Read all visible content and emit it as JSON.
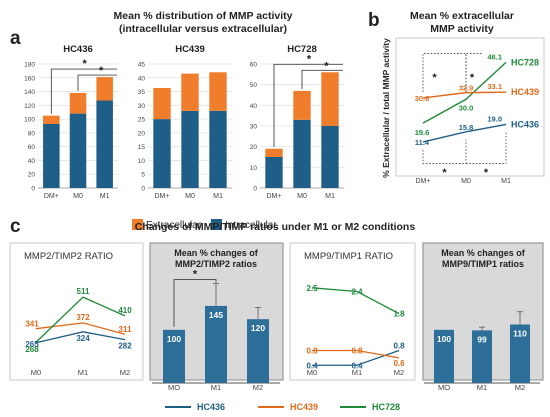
{
  "colors": {
    "intracellular": "#1f5f87",
    "extracellular": "#ef7d2c",
    "hc436": "#1f5f87",
    "hc439": "#e06a1a",
    "hc728": "#1f8a3a",
    "bar_c": "#2e6f9a",
    "panel_bg": "#d9d9d9",
    "text_dark": "#222222"
  },
  "panel_a": {
    "letter": "a",
    "title_line1": "Mean % distribution of MMP activity",
    "title_line2": "(intracellular versus extracellular)",
    "legend": {
      "extracellular": "Extracellular",
      "intracellular": "Intracellular"
    },
    "significance": "*"
  },
  "panel_b": {
    "letter": "b",
    "title_line1": "Mean % extracellular",
    "title_line2": "MMP activity",
    "ylabel": "% Extracellular / total MMP activity",
    "significance": "*"
  },
  "panel_c": {
    "letter": "c",
    "title": "Changes of MMP/TIMP ratios under M1 or M2 conditions",
    "sub1_title": "MMP2/TIMP2 RATIO",
    "sub2_title_line1": "Mean % changes of",
    "sub2_title_line2": "MMP2/TIMP2 ratios",
    "sub3_title": "MMP9/TIMP1 RATIO",
    "sub4_title_line1": "Mean % changes of",
    "sub4_title_line2": "MMP9/TIMP1 ratios",
    "significance": "*"
  },
  "legend_c": [
    {
      "name": "HC436",
      "color": "#1f5f87"
    },
    {
      "name": "HC439",
      "color": "#e06a1a"
    },
    {
      "name": "HC728",
      "color": "#1f8a3a"
    }
  ],
  "chart_data": [
    {
      "id": "a_hc436",
      "type": "bar",
      "stacked": true,
      "title": "HC436",
      "categories": [
        "DM+",
        "M0",
        "M1"
      ],
      "series": [
        {
          "name": "Intracellular",
          "values": [
            93,
            108,
            127
          ]
        },
        {
          "name": "Extracellular",
          "values": [
            12,
            30,
            34
          ]
        }
      ],
      "ylim": [
        0,
        180
      ],
      "yticks": [
        0,
        20,
        40,
        60,
        80,
        100,
        120,
        140,
        160,
        180
      ],
      "annotations": [
        "*",
        "*"
      ]
    },
    {
      "id": "a_hc439",
      "type": "bar",
      "stacked": true,
      "title": "HC439",
      "categories": [
        "DM+",
        "M0",
        "M1"
      ],
      "series": [
        {
          "name": "Intracellular",
          "values": [
            25,
            28,
            28
          ]
        },
        {
          "name": "Extracellular",
          "values": [
            11.3,
            13.5,
            14
          ]
        }
      ],
      "ylim": [
        0,
        45
      ],
      "yticks": [
        0,
        5,
        10,
        15,
        20,
        25,
        30,
        35,
        40,
        45
      ]
    },
    {
      "id": "a_hc728",
      "type": "bar",
      "stacked": true,
      "title": "HC728",
      "categories": [
        "DM+",
        "M0",
        "M1"
      ],
      "series": [
        {
          "name": "Intracellular",
          "values": [
            15,
            33,
            30
          ]
        },
        {
          "name": "Extracellular",
          "values": [
            4,
            14,
            26
          ]
        }
      ],
      "ylim": [
        0,
        60
      ],
      "yticks": [
        0,
        10,
        20,
        30,
        40,
        50,
        60
      ],
      "annotations": [
        "*",
        "*"
      ]
    },
    {
      "id": "b_extracellular",
      "type": "line",
      "x": [
        "DM+",
        "M0",
        "M1"
      ],
      "series": [
        {
          "name": "HC728",
          "values": [
            19.6,
            30.0,
            46.1
          ]
        },
        {
          "name": "HC439",
          "values": [
            30.6,
            32.9,
            33.1
          ]
        },
        {
          "name": "HC436",
          "values": [
            11.4,
            15.8,
            19.0
          ]
        }
      ],
      "ylabel": "% Extracellular / total MMP activity",
      "ylim": [
        0,
        55
      ]
    },
    {
      "id": "c_mmp2_timp2",
      "type": "line",
      "title": "MMP2/TIMP2 RATIO",
      "x": [
        "M0",
        "M1",
        "M2"
      ],
      "series": [
        {
          "name": "HC436",
          "values": [
            265,
            324,
            282
          ]
        },
        {
          "name": "HC439",
          "values": [
            341,
            372,
            311
          ]
        },
        {
          "name": "HC728",
          "values": [
            268,
            511,
            410
          ]
        }
      ],
      "ylim": [
        0,
        700
      ]
    },
    {
      "id": "c_mmp2_timp2_mean",
      "type": "bar",
      "title": "Mean % changes of MMP2/TIMP2 ratios",
      "categories": [
        "MO",
        "M1",
        "M2"
      ],
      "values": [
        100,
        145,
        120
      ],
      "errors": [
        0,
        42,
        22
      ],
      "ylim": [
        0,
        220
      ],
      "annotations": [
        "*"
      ]
    },
    {
      "id": "c_mmp9_timp1",
      "type": "line",
      "title": "MMP9/TIMP1 RATIO",
      "x": [
        "M0",
        "M1",
        "M2"
      ],
      "series": [
        {
          "name": "HC436",
          "values": [
            0.4,
            0.4,
            0.8
          ]
        },
        {
          "name": "HC439",
          "values": [
            0.8,
            0.8,
            0.6
          ]
        },
        {
          "name": "HC728",
          "values": [
            2.5,
            2.4,
            1.8
          ]
        }
      ],
      "ylim": [
        0,
        3.2
      ]
    },
    {
      "id": "c_mmp9_timp1_mean",
      "type": "bar",
      "title": "Mean % changes of MMP9/TIMP1 ratios",
      "categories": [
        "MO",
        "M1",
        "M2"
      ],
      "values": [
        100,
        99,
        110
      ],
      "errors": [
        0,
        6,
        24
      ],
      "ylim": [
        0,
        220
      ]
    }
  ]
}
